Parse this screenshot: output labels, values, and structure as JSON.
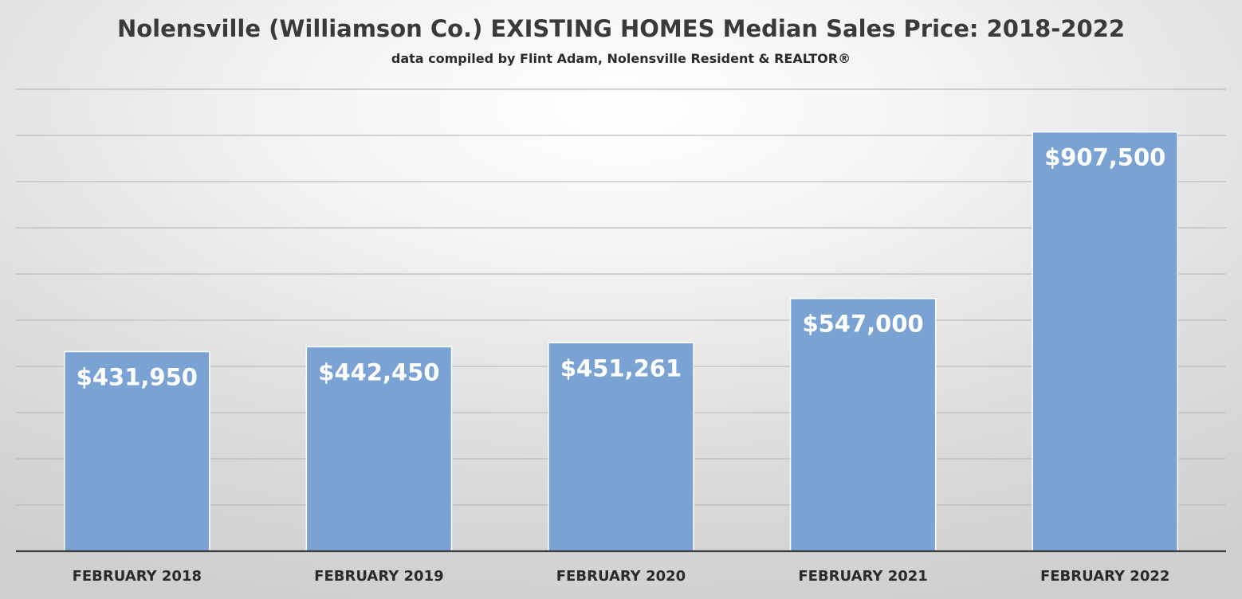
{
  "chart_data": {
    "type": "bar",
    "title": "Nolensville (Williamson Co.) EXISTING HOMES Median Sales Price: 2018-2022",
    "subtitle": "data compiled by Flint Adam, Nolensville Resident & REALTOR®",
    "categories": [
      "FEBRUARY 2018",
      "FEBRUARY 2019",
      "FEBRUARY 2020",
      "FEBRUARY 2021",
      "FEBRUARY 2022"
    ],
    "values": [
      431950,
      442450,
      451261,
      547000,
      907500
    ],
    "data_labels": [
      "$431,950",
      "$442,450",
      "$451,261",
      "$547,000",
      "$907,500"
    ],
    "xlabel": "",
    "ylabel": "",
    "ylim": [
      0,
      1000000
    ],
    "y_ticks_shown": false,
    "grid": true,
    "legend": "none",
    "colors": {
      "bar": "#7aa3d4",
      "label": "#ffffff",
      "grid": "#bcbcbc",
      "axis": "#3c3c3c"
    }
  }
}
